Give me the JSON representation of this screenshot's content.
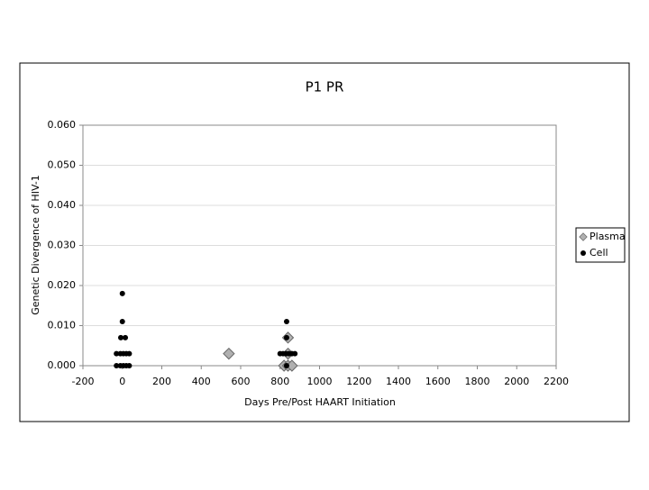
{
  "chart_data": {
    "type": "scatter",
    "title": "P1  PR",
    "x_label": "Days  Pre/Post  HAART  Initiation",
    "y_label": "Genetic  Divergence  of  HIV-1",
    "xlim": [
      -200,
      2200
    ],
    "xticks": [
      -200,
      0,
      200,
      400,
      600,
      800,
      1000,
      1200,
      1400,
      1600,
      1800,
      2000,
      2200
    ],
    "ylim": [
      0,
      0.06
    ],
    "yticks": [
      {
        "value": 0,
        "label": "0.000"
      },
      {
        "value": 0.01,
        "label": "0.010"
      },
      {
        "value": 0.02,
        "label": "0.020"
      },
      {
        "value": 0.03,
        "label": "0.030"
      },
      {
        "value": 0.04,
        "label": "0.040"
      },
      {
        "value": 0.05,
        "label": "0.050"
      },
      {
        "value": 0.06,
        "label": "0.060"
      }
    ],
    "grid": true,
    "legend": "right",
    "series": [
      {
        "name": "Plasma",
        "color": "#b0b0b0",
        "marker": "diamond",
        "x": [
          540,
          840,
          840,
          820,
          840,
          860
        ],
        "values": [
          0.003,
          0.007,
          0.003,
          0,
          0,
          0
        ]
      },
      {
        "name": "Cell",
        "color": "#000000",
        "marker": "circle",
        "x": [
          0,
          0,
          -8,
          15,
          -30,
          -10,
          5,
          20,
          35,
          -30,
          -10,
          5,
          20,
          35,
          833,
          833,
          800,
          815,
          830,
          845,
          860,
          875,
          833
        ],
        "values": [
          0.018,
          0.011,
          0.007,
          0.007,
          0.003,
          0.003,
          0.003,
          0.003,
          0.003,
          0,
          0,
          0,
          0,
          0,
          0.011,
          0.007,
          0.003,
          0.003,
          0.003,
          0.003,
          0.003,
          0.003,
          0
        ]
      }
    ]
  }
}
